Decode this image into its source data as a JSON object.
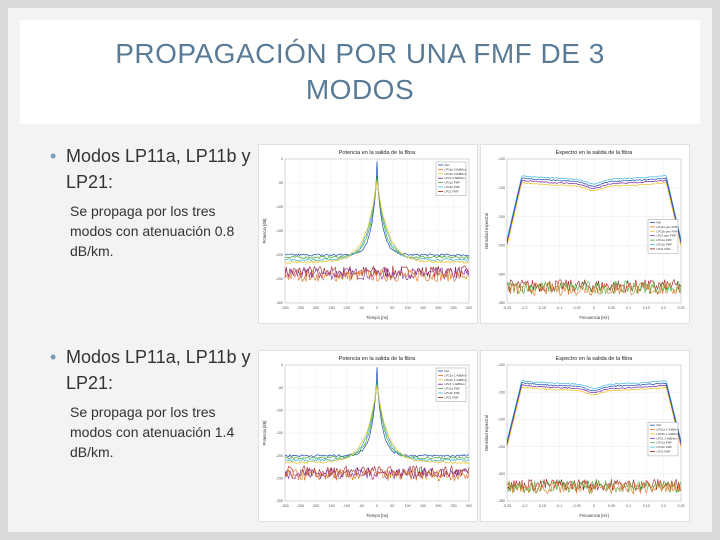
{
  "slide": {
    "title": "PROPAGACIÓN POR UNA FMF DE 3 MODOS",
    "bullets": [
      {
        "marker": "•",
        "heading": "Modos LP11a, LP11b y LP21:",
        "text": "Se propaga por los tres modos con atenuación 0.8 dB/km."
      },
      {
        "marker": "•",
        "heading": "Modos LP11a, LP11b y LP21:",
        "text": "Se propaga por los tres modos con atenuación 1.4 dB/km."
      }
    ]
  },
  "colors": {
    "title": "#5a7b96",
    "bullet_marker": "#7a9cb8",
    "series": [
      "#1f4fb4",
      "#e07020",
      "#e8c020",
      "#7a2aa0",
      "#4aa832",
      "#3fb8d8",
      "#a01c1c"
    ]
  },
  "chart_data": [
    {
      "type": "line",
      "title": "Potencia en la salida de la fibra",
      "xlabel": "Tiempo [ns]",
      "ylabel": "Potencia [dB]",
      "xlim": [
        -300,
        300
      ],
      "ylim": [
        -300,
        0
      ],
      "xticks": [
        "-300",
        "-250",
        "-200",
        "-150",
        "-100",
        "-50",
        "0",
        "50",
        "100",
        "150",
        "200",
        "250",
        "300"
      ],
      "yticks": [
        "0",
        "-50",
        "-100",
        "-150",
        "-200",
        "-250",
        "-300"
      ],
      "shape": "time",
      "legend_position": "top-right",
      "legend": [
        "Ref",
        "LP11a 0.8dB/km",
        "LP11b 0.8dB/km",
        "LP21 0.8dB/km",
        "LP11a FMF",
        "LP11b FMF",
        "LP21 FMF"
      ]
    },
    {
      "type": "line",
      "title": "Espectro en la salida de la fibra",
      "xlabel": "Frecuencia [Hz]",
      "ylabel": "Densidad espectral",
      "xlim": [
        -0.25,
        0.25
      ],
      "ylim": [
        -350,
        -100
      ],
      "xticks": [
        "-0.25",
        "-0.2",
        "-0.15",
        "-0.1",
        "-0.05",
        "0",
        "0.05",
        "0.1",
        "0.15",
        "0.2",
        "0.25"
      ],
      "yticks": [
        "-100",
        "-150",
        "-200",
        "-250",
        "-300",
        "-350"
      ],
      "shape": "spectrum",
      "legend_position": "right",
      "legend": [
        "Ref",
        "LP11a gen FMF",
        "LP11b gen FMF",
        "LP21 gen FMF",
        "LP11a FMF",
        "LP11b FMF",
        "LP21 FMF"
      ]
    },
    {
      "type": "line",
      "title": "Potencia en la salida de la fibra",
      "xlabel": "Tiempo [ns]",
      "ylabel": "Potencia [dB]",
      "xlim": [
        -300,
        300
      ],
      "ylim": [
        -300,
        0
      ],
      "xticks": [
        "-300",
        "-250",
        "-200",
        "-150",
        "-100",
        "-50",
        "0",
        "50",
        "100",
        "150",
        "200",
        "250",
        "300"
      ],
      "yticks": [
        "0",
        "-50",
        "-100",
        "-150",
        "-200",
        "-250",
        "-300"
      ],
      "shape": "time",
      "legend_position": "top-right",
      "legend": [
        "Ref",
        "LP11a 1.4dB/km",
        "LP11b 1.4dB/km",
        "LP21 1.4dB/km",
        "LP11a FMF",
        "LP11b FMF",
        "LP21 FMF"
      ]
    },
    {
      "type": "line",
      "title": "Espectro en la salida de la fibra",
      "xlabel": "Frecuencia [Hz]",
      "ylabel": "Densidad espectral",
      "xlim": [
        -0.25,
        0.25
      ],
      "ylim": [
        -350,
        -100
      ],
      "xticks": [
        "-0.25",
        "-0.2",
        "-0.15",
        "-0.1",
        "-0.05",
        "0",
        "0.05",
        "0.1",
        "0.15",
        "0.2",
        "0.25"
      ],
      "yticks": [
        "-100",
        "-150",
        "-200",
        "-250",
        "-300",
        "-350"
      ],
      "shape": "spectrum",
      "legend_position": "right",
      "legend": [
        "Ref",
        "LP11a 1.4dB/km",
        "LP11b 1.4dB/km",
        "LP21 1.4dB/km",
        "LP11a FMF",
        "LP11b FMF",
        "LP21 FMF"
      ]
    }
  ]
}
